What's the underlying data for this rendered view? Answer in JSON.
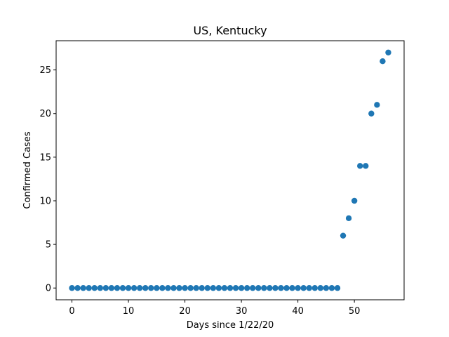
{
  "chart_data": {
    "type": "scatter",
    "title": "US, Kentucky",
    "xlabel": "Days since 1/22/20",
    "ylabel": "Confirmed Cases",
    "xlim": [
      -2.8,
      58.8
    ],
    "ylim": [
      -1.35,
      28.35
    ],
    "xticks": [
      0,
      10,
      20,
      30,
      40,
      50
    ],
    "yticks": [
      0,
      5,
      10,
      15,
      20,
      25
    ],
    "grid": false,
    "marker_color": "#1f77b4",
    "series": [
      {
        "x": [
          0,
          1,
          2,
          3,
          4,
          5,
          6,
          7,
          8,
          9,
          10,
          11,
          12,
          13,
          14,
          15,
          16,
          17,
          18,
          19,
          20,
          21,
          22,
          23,
          24,
          25,
          26,
          27,
          28,
          29,
          30,
          31,
          32,
          33,
          34,
          35,
          36,
          37,
          38,
          39,
          40,
          41,
          42,
          43,
          44,
          45,
          46,
          47,
          48,
          49,
          50,
          51,
          52,
          53,
          54,
          55,
          56
        ],
        "y": [
          0,
          0,
          0,
          0,
          0,
          0,
          0,
          0,
          0,
          0,
          0,
          0,
          0,
          0,
          0,
          0,
          0,
          0,
          0,
          0,
          0,
          0,
          0,
          0,
          0,
          0,
          0,
          0,
          0,
          0,
          0,
          0,
          0,
          0,
          0,
          0,
          0,
          0,
          0,
          0,
          0,
          0,
          0,
          0,
          0,
          0,
          0,
          0,
          6,
          8,
          10,
          14,
          14,
          20,
          21,
          26,
          27
        ]
      }
    ]
  }
}
